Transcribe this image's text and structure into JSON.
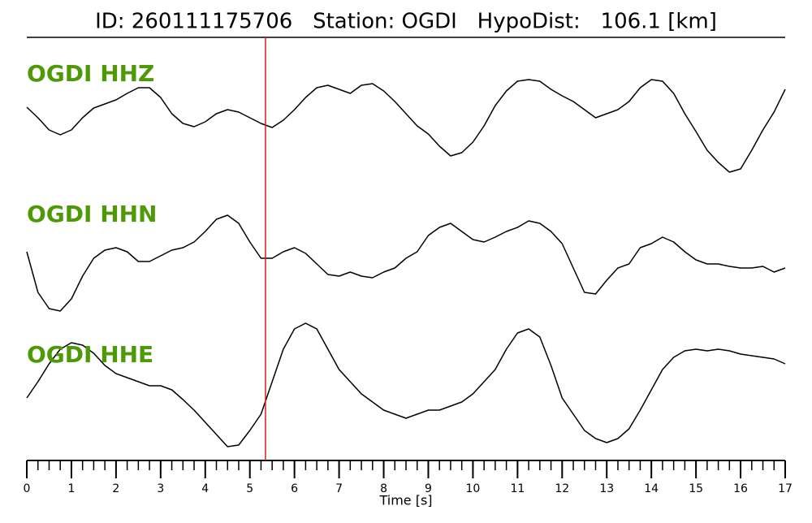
{
  "chart_data": {
    "type": "line",
    "title": "ID: 260111175706   Station: OGDI   HypoDist:   106.1 [km]",
    "xlabel": "Time [s]",
    "xlim": [
      0,
      17
    ],
    "xticks": [
      0,
      1,
      2,
      3,
      4,
      5,
      6,
      7,
      8,
      9,
      10,
      11,
      12,
      13,
      14,
      15,
      16,
      17
    ],
    "x_minor_tick_step": 0.25,
    "pick_time": 5.35,
    "pick_color": "#e41a1c",
    "label_color": "#4e9a06",
    "x": [
      0,
      0.25,
      0.5,
      0.75,
      1,
      1.25,
      1.5,
      1.75,
      2,
      2.25,
      2.5,
      2.75,
      3,
      3.25,
      3.5,
      3.75,
      4,
      4.25,
      4.5,
      4.75,
      5,
      5.25,
      5.5,
      5.75,
      6,
      6.25,
      6.5,
      6.75,
      7,
      7.25,
      7.5,
      7.75,
      8,
      8.25,
      8.5,
      8.75,
      9,
      9.25,
      9.5,
      9.75,
      10,
      10.25,
      10.5,
      10.75,
      11,
      11.25,
      11.5,
      11.75,
      12,
      12.25,
      12.5,
      12.75,
      13,
      13.25,
      13.5,
      13.75,
      14,
      14.25,
      14.5,
      14.75,
      15,
      15.25,
      15.5,
      15.75,
      16,
      16.25,
      16.5,
      16.75,
      17
    ],
    "series": [
      {
        "name": "OGDI HHZ",
        "color": "#000000",
        "values": [
          23,
          10,
          -5,
          -11,
          -5,
          10,
          22,
          27,
          32,
          40,
          47,
          47,
          35,
          15,
          3,
          -1,
          5,
          15,
          20,
          17,
          10,
          3,
          -2,
          7,
          20,
          35,
          47,
          50,
          45,
          40,
          50,
          52,
          43,
          30,
          15,
          0,
          -10,
          -25,
          -37,
          -33,
          -20,
          0,
          25,
          43,
          55,
          57,
          55,
          45,
          37,
          30,
          20,
          10,
          15,
          20,
          30,
          47,
          57,
          55,
          40,
          15,
          -7,
          -30,
          -45,
          -57,
          -53,
          -30,
          -5,
          17,
          45
        ]
      },
      {
        "name": "OGDI HHN",
        "color": "#000000",
        "values": [
          10,
          -40,
          -60,
          -63,
          -48,
          -20,
          2,
          12,
          15,
          10,
          -2,
          -2,
          5,
          12,
          15,
          22,
          35,
          50,
          55,
          45,
          22,
          2,
          2,
          10,
          15,
          8,
          -5,
          -18,
          -20,
          -15,
          -20,
          -22,
          -15,
          -10,
          2,
          10,
          30,
          40,
          45,
          35,
          25,
          22,
          28,
          35,
          40,
          48,
          45,
          35,
          20,
          -10,
          -40,
          -42,
          -25,
          -10,
          -5,
          15,
          20,
          28,
          22,
          10,
          0,
          -5,
          -5,
          -8,
          -10,
          -10,
          -8,
          -15,
          -10
        ]
      },
      {
        "name": "OGDI HHE",
        "color": "#000000",
        "values": [
          -15,
          5,
          27,
          45,
          53,
          50,
          40,
          25,
          15,
          10,
          5,
          0,
          0,
          -5,
          -17,
          -30,
          -45,
          -60,
          -75,
          -73,
          -55,
          -35,
          5,
          45,
          70,
          77,
          70,
          45,
          20,
          5,
          -10,
          -20,
          -30,
          -35,
          -40,
          -35,
          -30,
          -30,
          -25,
          -20,
          -10,
          5,
          20,
          45,
          65,
          70,
          60,
          25,
          -15,
          -35,
          -55,
          -65,
          -70,
          -65,
          -53,
          -30,
          -5,
          20,
          35,
          43,
          45,
          43,
          45,
          43,
          39,
          37,
          35,
          33,
          27
        ]
      }
    ]
  }
}
